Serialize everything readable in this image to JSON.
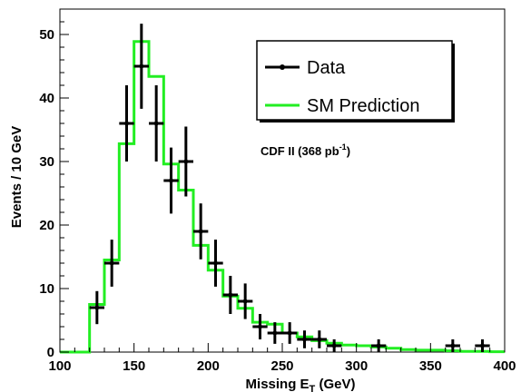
{
  "chart_data": {
    "type": "step-histogram-with-points",
    "xlabel_main": "Missing E",
    "xlabel_sub": "T",
    "xlabel_unit": " (GeV)",
    "ylabel": "Events / 10 GeV",
    "xlim": [
      100,
      400
    ],
    "ylim": [
      0,
      54
    ],
    "xticks": [
      100,
      150,
      200,
      250,
      300,
      350,
      400
    ],
    "yticks": [
      0,
      10,
      20,
      30,
      40,
      50
    ],
    "annotation": {
      "text_main": "CDF II (368 pb",
      "text_sup": "-1",
      "text_close": ")"
    },
    "legend": {
      "entries": [
        {
          "label": "Data",
          "style": "points",
          "color": "#000000"
        },
        {
          "label": "SM Prediction",
          "style": "line",
          "color": "#22ee22"
        }
      ]
    },
    "series": [
      {
        "name": "Data",
        "color": "#000000",
        "x": [
          125,
          135,
          145,
          155,
          165,
          175,
          185,
          195,
          205,
          215,
          225,
          235,
          245,
          255,
          265,
          275,
          285,
          315,
          365,
          385
        ],
        "y": [
          7,
          14,
          36,
          45,
          36,
          27,
          30,
          19,
          14,
          9,
          8,
          4,
          3,
          3,
          2,
          2,
          1,
          1,
          1,
          1
        ],
        "yerr": [
          2.6,
          3.7,
          6.0,
          6.7,
          6.0,
          5.2,
          5.5,
          4.4,
          3.7,
          3.0,
          2.8,
          2.0,
          1.7,
          1.7,
          1.4,
          1.4,
          1.0,
          1.0,
          1.0,
          1.0
        ]
      },
      {
        "name": "SM Prediction",
        "color": "#22ee22",
        "bin_edges": [
          100,
          110,
          120,
          130,
          140,
          150,
          160,
          170,
          180,
          190,
          200,
          210,
          220,
          230,
          240,
          250,
          260,
          270,
          280,
          290,
          300,
          310,
          320,
          330,
          340,
          350,
          360,
          370,
          380,
          390,
          400
        ],
        "values": [
          0,
          0,
          7.5,
          14.5,
          32.8,
          48.9,
          43.4,
          29.6,
          25.5,
          16.8,
          12.9,
          8.8,
          6.9,
          4.7,
          4.4,
          3.0,
          2.4,
          1.8,
          1.4,
          1.1,
          1.0,
          0.8,
          0.6,
          0.4,
          0.3,
          0.3,
          0.2,
          0.1,
          0.1,
          0.05
        ]
      }
    ]
  }
}
